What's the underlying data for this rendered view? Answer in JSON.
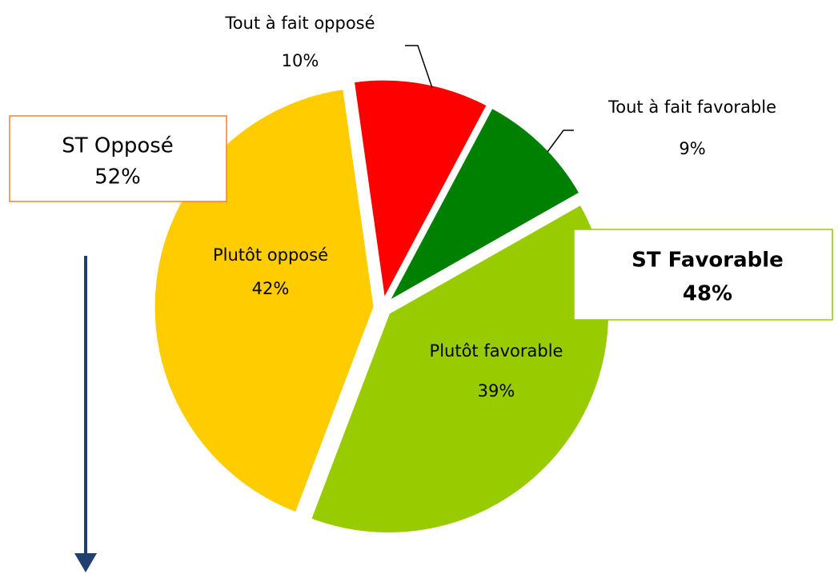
{
  "chart_data": {
    "type": "pie",
    "categories": [
      "Tout à fait opposé",
      "Tout à fait favorable",
      "Plutôt favorable",
      "Plutôt opposé"
    ],
    "values": [
      10,
      9,
      39,
      42
    ],
    "value_labels": [
      "10%",
      "9%",
      "39%",
      "42%"
    ],
    "colors": [
      "#ff0000",
      "#008000",
      "#99cc00",
      "#ffcc00"
    ],
    "annotations": [
      {
        "text": "ST Opposé",
        "value": 52,
        "label": "52%"
      },
      {
        "text": "ST Favorable",
        "value": 48,
        "label": "48%"
      }
    ]
  }
}
